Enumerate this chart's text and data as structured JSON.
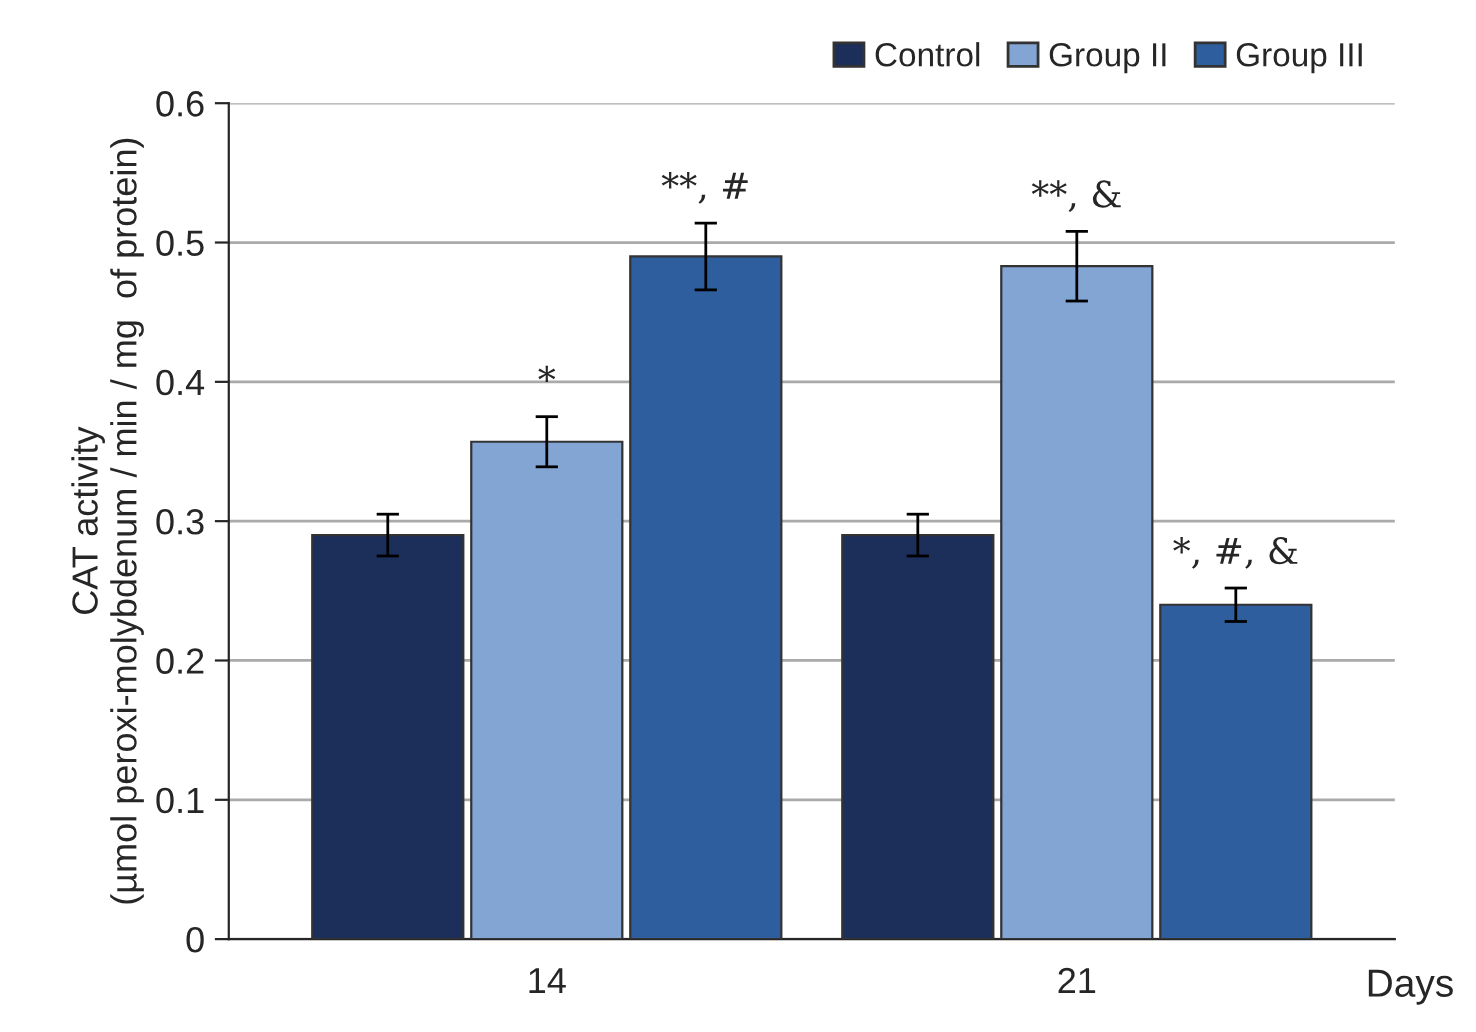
{
  "chart_data": {
    "type": "bar",
    "xlabel": "Days",
    "ylabel": "CAT activity\n(µmol peroxi-molybdenum / min / mg  of protein)",
    "categories": [
      "14",
      "21"
    ],
    "series": [
      {
        "name": "Control",
        "color": "#1c2e5a",
        "values": [
          0.29,
          0.29
        ],
        "errors": [
          0.015,
          0.015
        ],
        "value_labels": [
          null,
          null
        ]
      },
      {
        "name": "Group II",
        "color": "#82a5d4",
        "values": [
          0.357,
          0.483
        ],
        "errors": [
          0.018,
          0.025
        ],
        "value_labels": [
          "*",
          "**, &"
        ]
      },
      {
        "name": "Group III",
        "color": "#2e5e9e",
        "values": [
          0.49,
          0.24
        ],
        "errors": [
          0.024,
          0.012
        ],
        "value_labels": [
          "**, #",
          "*, #, &"
        ]
      }
    ],
    "ylim": [
      0,
      0.6
    ],
    "yticks": [
      0,
      0.1,
      0.2,
      0.3,
      0.4,
      0.5,
      0.6
    ],
    "grid": "y",
    "legend": "top right"
  }
}
